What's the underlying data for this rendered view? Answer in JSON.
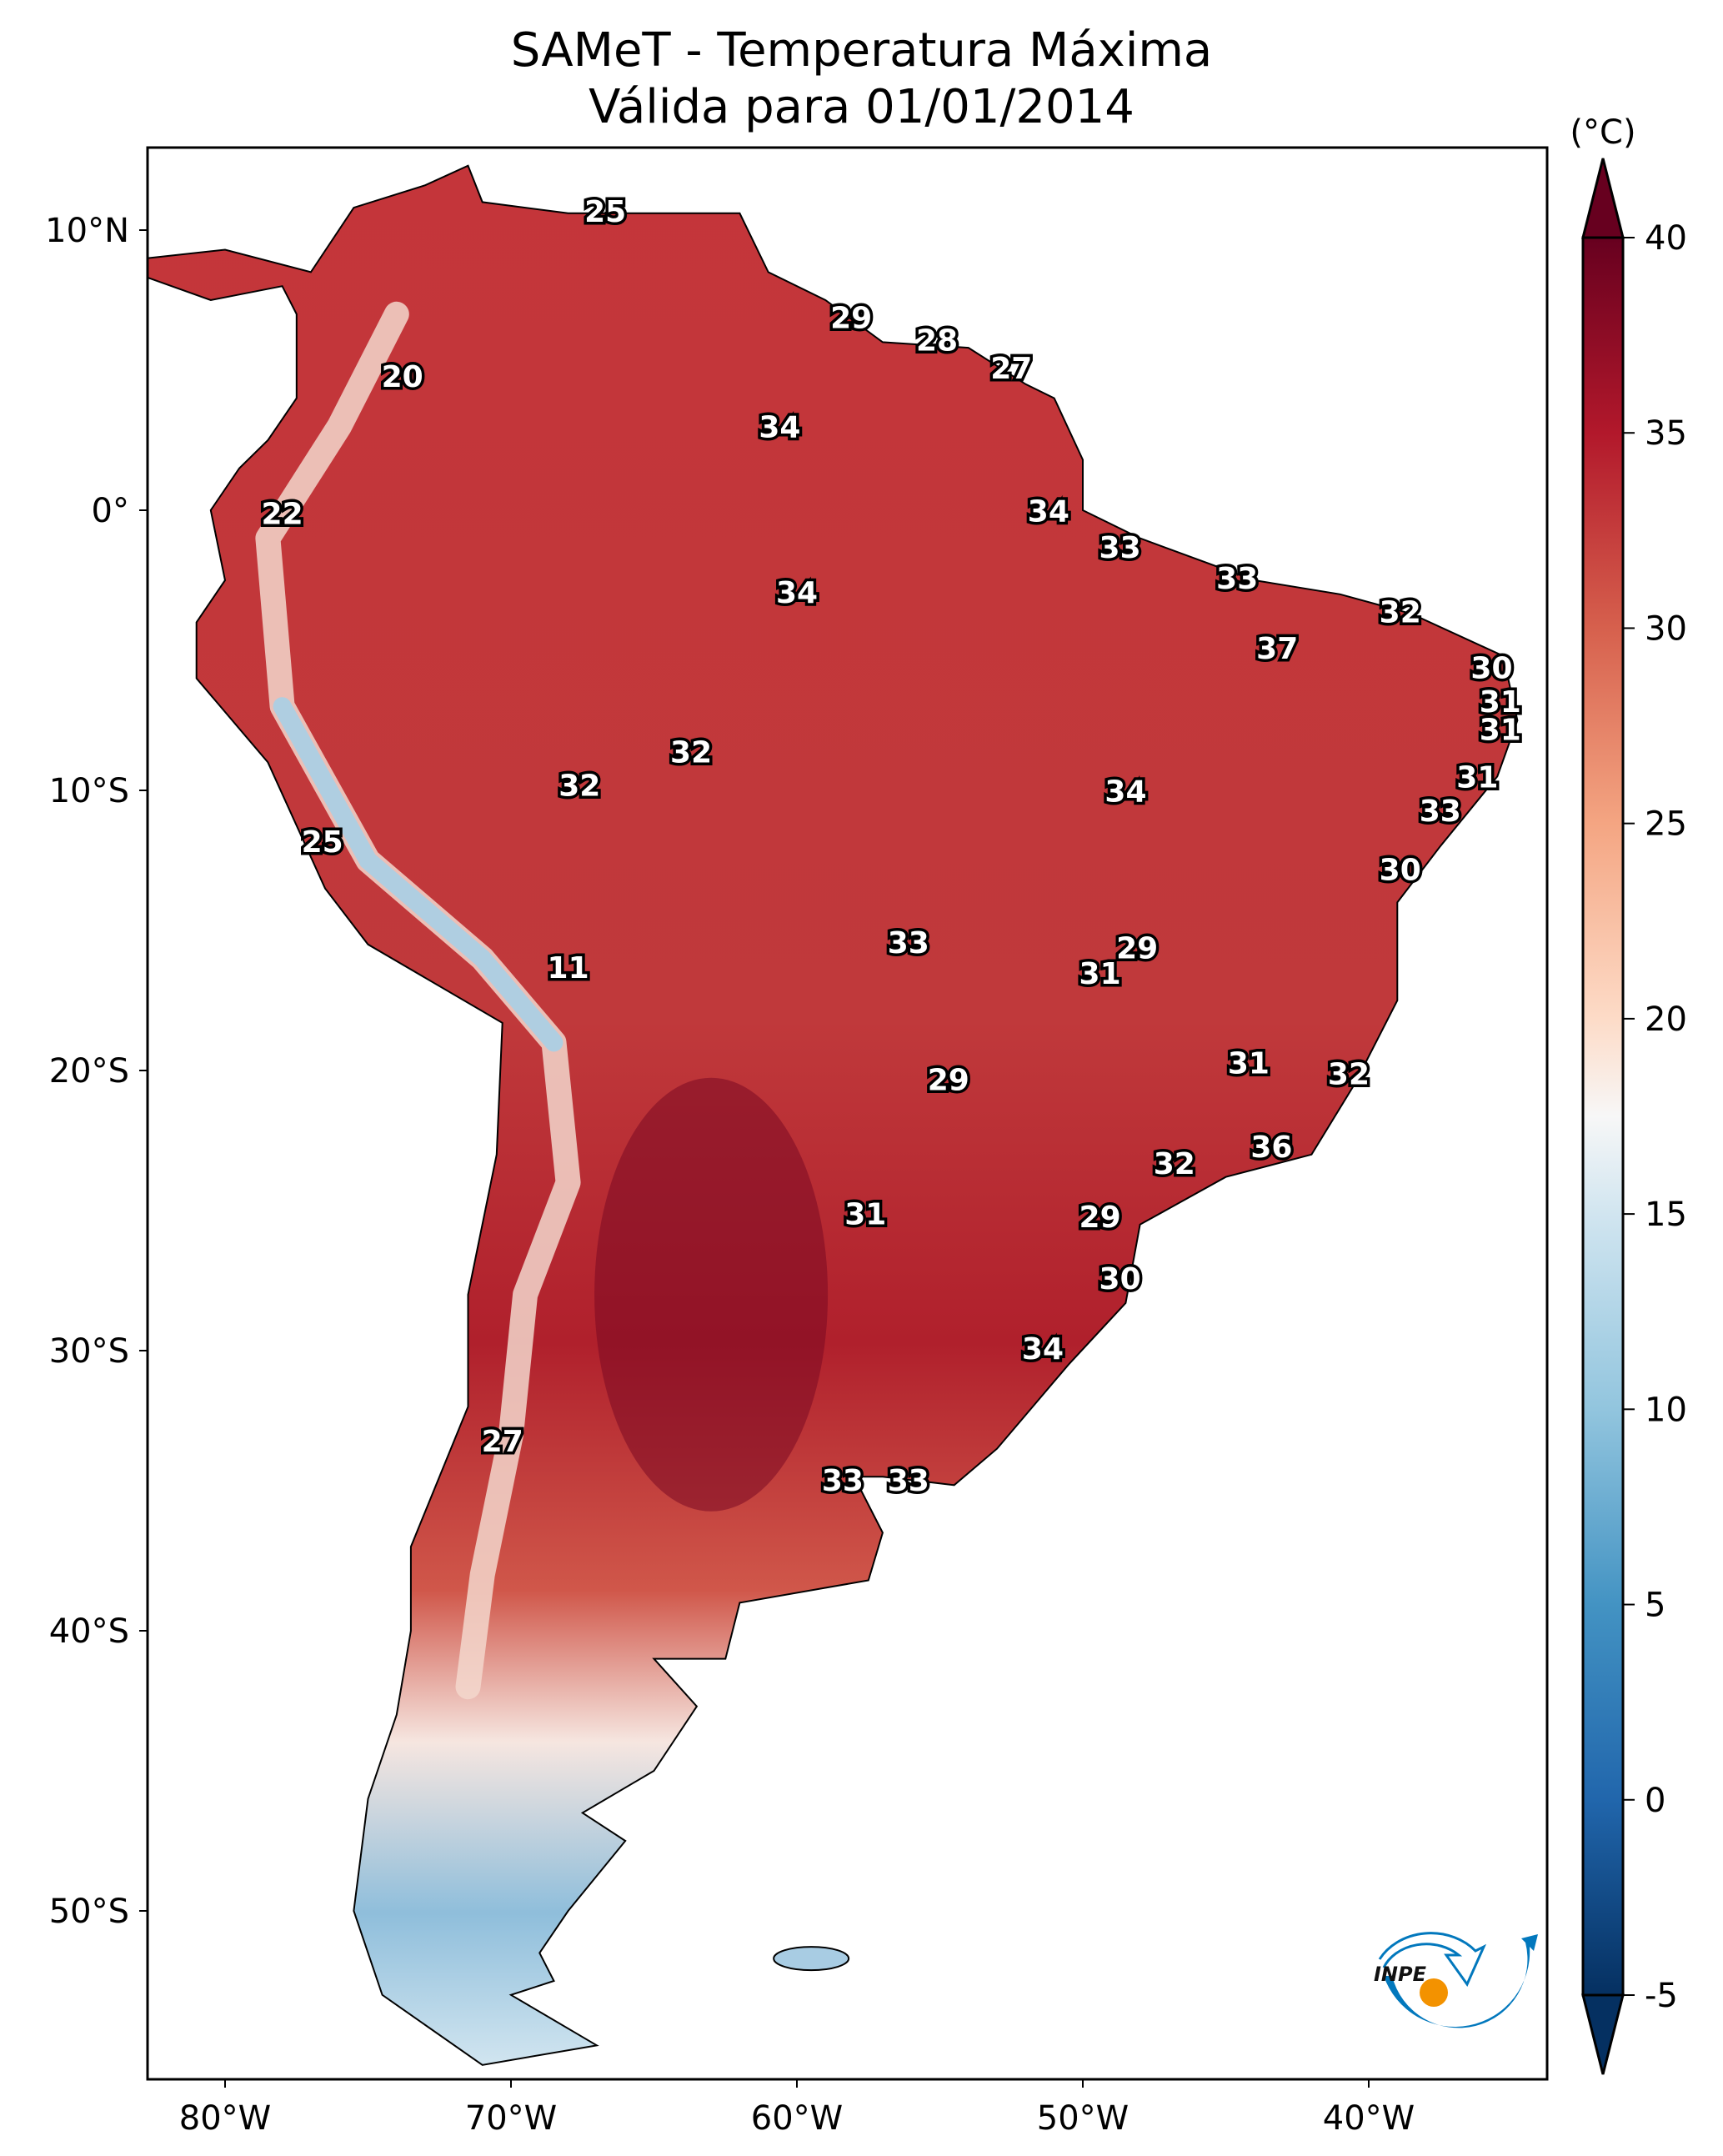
{
  "title": "SAMeT - Temperatura Máxima",
  "subtitle": "Válida para 01/01/2014",
  "colorbar": {
    "unit": "(°C)",
    "range": [
      -5,
      40
    ],
    "extend": "both",
    "ticks": [
      "-5",
      "0",
      "5",
      "10",
      "15",
      "20",
      "25",
      "30",
      "35",
      "40"
    ],
    "colormap": "RdBu_r",
    "stops": [
      {
        "v": -5,
        "c": "#053061"
      },
      {
        "v": 0,
        "c": "#2166ac"
      },
      {
        "v": 5,
        "c": "#4393c3"
      },
      {
        "v": 10,
        "c": "#92c5de"
      },
      {
        "v": 15,
        "c": "#d1e5f0"
      },
      {
        "v": 17.5,
        "c": "#f7f7f7"
      },
      {
        "v": 20,
        "c": "#fddbc7"
      },
      {
        "v": 25,
        "c": "#f4a582"
      },
      {
        "v": 30,
        "c": "#d6604d"
      },
      {
        "v": 35,
        "c": "#b2182b"
      },
      {
        "v": 40,
        "c": "#67001f"
      }
    ]
  },
  "axes": {
    "x_ticks": [
      {
        "lon": -80,
        "label": "80°W"
      },
      {
        "lon": -70,
        "label": "70°W"
      },
      {
        "lon": -60,
        "label": "60°W"
      },
      {
        "lon": -50,
        "label": "50°W"
      },
      {
        "lon": -40,
        "label": "40°W"
      }
    ],
    "y_ticks": [
      {
        "lat": 10,
        "label": "10°N"
      },
      {
        "lat": 0,
        "label": "0°"
      },
      {
        "lat": -10,
        "label": "10°S"
      },
      {
        "lat": -20,
        "label": "20°S"
      },
      {
        "lat": -30,
        "label": "30°S"
      },
      {
        "lat": -40,
        "label": "40°S"
      },
      {
        "lat": -50,
        "label": "50°S"
      }
    ]
  },
  "logo": {
    "text": "INPE",
    "colors": {
      "blue": "#0278bd",
      "orange": "#f39200"
    }
  },
  "labels": [
    {
      "v": "25",
      "lon": -66.7,
      "lat": 10.6
    },
    {
      "v": "29",
      "lon": -58.1,
      "lat": 6.8
    },
    {
      "v": "28",
      "lon": -55.1,
      "lat": 6.0
    },
    {
      "v": "27",
      "lon": -52.5,
      "lat": 5.0
    },
    {
      "v": "20",
      "lon": -73.8,
      "lat": 4.7
    },
    {
      "v": "34",
      "lon": -60.6,
      "lat": 2.9
    },
    {
      "v": "22",
      "lon": -78.0,
      "lat": -0.2
    },
    {
      "v": "34",
      "lon": -51.2,
      "lat": -0.1
    },
    {
      "v": "33",
      "lon": -48.7,
      "lat": -1.4
    },
    {
      "v": "34",
      "lon": -60.0,
      "lat": -3.0
    },
    {
      "v": "33",
      "lon": -44.6,
      "lat": -2.5
    },
    {
      "v": "32",
      "lon": -38.9,
      "lat": -3.7
    },
    {
      "v": "37",
      "lon": -43.2,
      "lat": -5.0
    },
    {
      "v": "30",
      "lon": -35.7,
      "lat": -5.7
    },
    {
      "v": "31",
      "lon": -35.4,
      "lat": -6.9
    },
    {
      "v": "31",
      "lon": -35.4,
      "lat": -7.9
    },
    {
      "v": "32",
      "lon": -63.7,
      "lat": -8.7
    },
    {
      "v": "32",
      "lon": -67.6,
      "lat": -9.9
    },
    {
      "v": "31",
      "lon": -36.2,
      "lat": -9.6
    },
    {
      "v": "34",
      "lon": -48.5,
      "lat": -10.1
    },
    {
      "v": "33",
      "lon": -37.5,
      "lat": -10.8
    },
    {
      "v": "25",
      "lon": -76.6,
      "lat": -11.9
    },
    {
      "v": "30",
      "lon": -38.9,
      "lat": -12.9
    },
    {
      "v": "33",
      "lon": -56.1,
      "lat": -15.5
    },
    {
      "v": "29",
      "lon": -48.1,
      "lat": -15.7
    },
    {
      "v": "31",
      "lon": -49.4,
      "lat": -16.6
    },
    {
      "v": "11",
      "lon": -68.0,
      "lat": -16.4
    },
    {
      "v": "31",
      "lon": -44.2,
      "lat": -19.8
    },
    {
      "v": "32",
      "lon": -40.7,
      "lat": -20.2
    },
    {
      "v": "29",
      "lon": -54.7,
      "lat": -20.4
    },
    {
      "v": "36",
      "lon": -43.4,
      "lat": -22.8
    },
    {
      "v": "32",
      "lon": -46.8,
      "lat": -23.4
    },
    {
      "v": "31",
      "lon": -57.6,
      "lat": -25.2
    },
    {
      "v": "29",
      "lon": -49.4,
      "lat": -25.3
    },
    {
      "v": "30",
      "lon": -48.7,
      "lat": -27.5
    },
    {
      "v": "34",
      "lon": -51.4,
      "lat": -30.0
    },
    {
      "v": "27",
      "lon": -70.3,
      "lat": -33.3
    },
    {
      "v": "33",
      "lon": -58.4,
      "lat": -34.7
    },
    {
      "v": "33",
      "lon": -56.1,
      "lat": -34.7
    }
  ]
}
